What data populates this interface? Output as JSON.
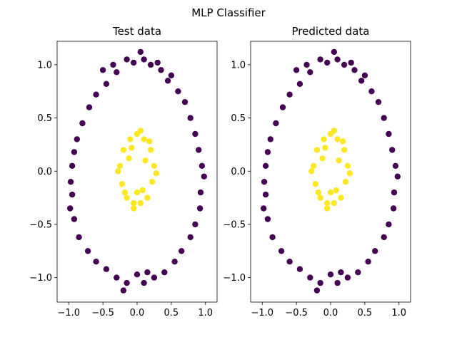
{
  "suptitle": "MLP Classifier",
  "colors": {
    "class_0": "#440154",
    "class_1": "#fde725"
  },
  "chart_data": [
    {
      "type": "scatter",
      "title": "Test data",
      "xlabel": "",
      "ylabel": "",
      "xlim": [
        -1.17,
        1.17
      ],
      "ylim": [
        -1.23,
        1.22
      ],
      "xticks": [
        -1.0,
        -0.5,
        0.0,
        0.5,
        1.0
      ],
      "yticks": [
        -1.0,
        -0.5,
        0.0,
        0.5,
        1.0
      ],
      "xtick_labels": [
        "−1.0",
        "−0.5",
        "0.0",
        "0.5",
        "1.0"
      ],
      "ytick_labels": [
        "−1.0",
        "−0.5",
        "0.0",
        "0.5",
        "1.0"
      ],
      "grid": false,
      "series": [
        {
          "color": "#440154",
          "points": [
            [
              0.05,
              1.12
            ],
            [
              -0.05,
              1.02
            ],
            [
              0.1,
              1.05
            ],
            [
              0.2,
              1.0
            ],
            [
              -0.15,
              1.05
            ],
            [
              0.35,
              0.95
            ],
            [
              -0.3,
              0.93
            ],
            [
              0.45,
              0.85
            ],
            [
              -0.45,
              0.82
            ],
            [
              0.6,
              0.75
            ],
            [
              -0.6,
              0.72
            ],
            [
              0.7,
              0.65
            ],
            [
              -0.7,
              0.6
            ],
            [
              0.78,
              0.5
            ],
            [
              -0.8,
              0.45
            ],
            [
              0.85,
              0.35
            ],
            [
              -0.88,
              0.3
            ],
            [
              0.9,
              0.2
            ],
            [
              -0.92,
              0.18
            ],
            [
              0.95,
              0.05
            ],
            [
              -0.95,
              0.05
            ],
            [
              0.98,
              -0.05
            ],
            [
              -0.97,
              -0.1
            ],
            [
              0.93,
              -0.2
            ],
            [
              -0.95,
              -0.22
            ],
            [
              0.92,
              -0.35
            ],
            [
              -0.98,
              -0.35
            ],
            [
              0.85,
              -0.5
            ],
            [
              -0.92,
              -0.45
            ],
            [
              0.78,
              -0.62
            ],
            [
              -0.85,
              -0.62
            ],
            [
              0.65,
              -0.75
            ],
            [
              -0.72,
              -0.75
            ],
            [
              0.55,
              -0.85
            ],
            [
              -0.6,
              -0.85
            ],
            [
              0.4,
              -0.95
            ],
            [
              -0.45,
              -0.92
            ],
            [
              0.25,
              -1.0
            ],
            [
              -0.3,
              -1.0
            ],
            [
              0.1,
              -1.05
            ],
            [
              -0.15,
              -1.05
            ],
            [
              0.0,
              -0.97
            ],
            [
              -0.2,
              -1.12
            ],
            [
              0.15,
              -0.95
            ],
            [
              -0.5,
              0.95
            ],
            [
              0.5,
              0.9
            ],
            [
              -0.35,
              1.0
            ],
            [
              0.3,
              1.02
            ]
          ]
        },
        {
          "color": "#fde725",
          "points": [
            [
              0.0,
              0.35
            ],
            [
              0.1,
              0.3
            ],
            [
              -0.1,
              0.3
            ],
            [
              0.2,
              0.2
            ],
            [
              -0.2,
              0.2
            ],
            [
              0.25,
              0.05
            ],
            [
              -0.25,
              0.05
            ],
            [
              0.22,
              -0.1
            ],
            [
              -0.22,
              -0.12
            ],
            [
              0.15,
              -0.25
            ],
            [
              -0.15,
              -0.25
            ],
            [
              0.05,
              -0.3
            ],
            [
              -0.05,
              -0.3
            ],
            [
              0.0,
              -0.2
            ],
            [
              0.12,
              0.1
            ],
            [
              -0.12,
              0.12
            ],
            [
              0.18,
              0.28
            ],
            [
              -0.18,
              -0.2
            ],
            [
              0.05,
              0.38
            ],
            [
              -0.05,
              -0.35
            ],
            [
              0.28,
              -0.02
            ],
            [
              -0.28,
              0.0
            ],
            [
              -0.08,
              0.22
            ],
            [
              0.08,
              -0.18
            ]
          ]
        }
      ]
    },
    {
      "type": "scatter",
      "title": "Predicted data",
      "xlabel": "",
      "ylabel": "",
      "xlim": [
        -1.17,
        1.17
      ],
      "ylim": [
        -1.23,
        1.22
      ],
      "xticks": [
        -1.0,
        -0.5,
        0.0,
        0.5,
        1.0
      ],
      "yticks": [
        -1.0,
        -0.5,
        0.0,
        0.5,
        1.0
      ],
      "xtick_labels": [
        "−1.0",
        "−0.5",
        "0.0",
        "0.5",
        "1.0"
      ],
      "ytick_labels": [
        "−1.0",
        "−0.5",
        "0.0",
        "0.5",
        "1.0"
      ],
      "grid": false,
      "series": [
        {
          "color": "#440154",
          "points": [
            [
              0.05,
              1.12
            ],
            [
              -0.05,
              1.02
            ],
            [
              0.1,
              1.05
            ],
            [
              0.2,
              1.0
            ],
            [
              -0.15,
              1.05
            ],
            [
              0.35,
              0.95
            ],
            [
              -0.3,
              0.93
            ],
            [
              0.45,
              0.85
            ],
            [
              -0.45,
              0.82
            ],
            [
              0.6,
              0.75
            ],
            [
              -0.6,
              0.72
            ],
            [
              0.7,
              0.65
            ],
            [
              -0.7,
              0.6
            ],
            [
              0.78,
              0.5
            ],
            [
              -0.8,
              0.45
            ],
            [
              0.85,
              0.35
            ],
            [
              -0.88,
              0.3
            ],
            [
              0.9,
              0.2
            ],
            [
              -0.92,
              0.18
            ],
            [
              0.95,
              0.05
            ],
            [
              -0.95,
              0.05
            ],
            [
              0.98,
              -0.05
            ],
            [
              -0.97,
              -0.1
            ],
            [
              0.93,
              -0.2
            ],
            [
              -0.95,
              -0.22
            ],
            [
              0.92,
              -0.35
            ],
            [
              -0.98,
              -0.35
            ],
            [
              0.85,
              -0.5
            ],
            [
              -0.92,
              -0.45
            ],
            [
              0.78,
              -0.62
            ],
            [
              -0.85,
              -0.62
            ],
            [
              0.65,
              -0.75
            ],
            [
              -0.72,
              -0.75
            ],
            [
              0.55,
              -0.85
            ],
            [
              -0.6,
              -0.85
            ],
            [
              0.4,
              -0.95
            ],
            [
              -0.45,
              -0.92
            ],
            [
              0.25,
              -1.0
            ],
            [
              -0.3,
              -1.0
            ],
            [
              0.1,
              -1.05
            ],
            [
              -0.15,
              -1.05
            ],
            [
              0.0,
              -0.97
            ],
            [
              -0.2,
              -1.12
            ],
            [
              0.15,
              -0.95
            ],
            [
              -0.5,
              0.95
            ],
            [
              0.5,
              0.9
            ],
            [
              -0.35,
              1.0
            ],
            [
              0.3,
              1.02
            ]
          ]
        },
        {
          "color": "#fde725",
          "points": [
            [
              0.0,
              0.35
            ],
            [
              0.1,
              0.3
            ],
            [
              -0.1,
              0.3
            ],
            [
              0.2,
              0.2
            ],
            [
              -0.2,
              0.2
            ],
            [
              0.25,
              0.05
            ],
            [
              -0.25,
              0.05
            ],
            [
              0.22,
              -0.1
            ],
            [
              -0.22,
              -0.12
            ],
            [
              0.15,
              -0.25
            ],
            [
              -0.15,
              -0.25
            ],
            [
              0.05,
              -0.3
            ],
            [
              -0.05,
              -0.3
            ],
            [
              0.0,
              -0.2
            ],
            [
              0.12,
              0.1
            ],
            [
              -0.12,
              0.12
            ],
            [
              0.18,
              0.28
            ],
            [
              -0.18,
              -0.2
            ],
            [
              0.05,
              0.38
            ],
            [
              -0.05,
              -0.35
            ],
            [
              0.28,
              -0.02
            ],
            [
              -0.28,
              0.0
            ],
            [
              -0.08,
              0.22
            ],
            [
              0.08,
              -0.18
            ]
          ]
        }
      ]
    }
  ]
}
